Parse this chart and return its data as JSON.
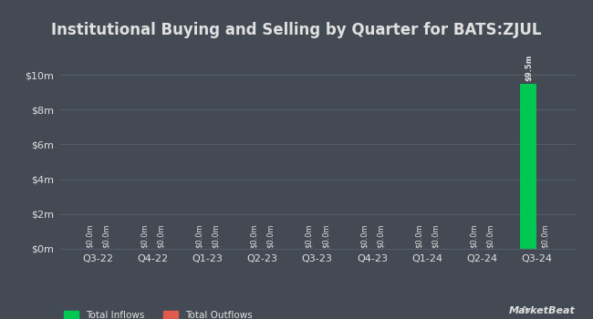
{
  "title": "Institutional Buying and Selling by Quarter for BATS:ZJUL",
  "quarters": [
    "Q3-22",
    "Q4-22",
    "Q1-23",
    "Q2-23",
    "Q3-23",
    "Q4-23",
    "Q1-24",
    "Q2-24",
    "Q3-24"
  ],
  "inflows": [
    0.0,
    0.0,
    0.0,
    0.0,
    0.0,
    0.0,
    0.0,
    0.0,
    9500000
  ],
  "outflows": [
    0.0,
    0.0,
    0.0,
    0.0,
    0.0,
    0.0,
    0.0,
    0.0,
    0.0
  ],
  "inflow_color": "#00c853",
  "outflow_color": "#e05a4e",
  "background_color": "#434a54",
  "plot_bg_color": "#434a54",
  "grid_color": "#545c67",
  "text_color": "#e0e0e0",
  "title_fontsize": 12,
  "tick_fontsize": 8,
  "bar_label_fontsize": 6,
  "ylim": [
    0,
    11000000
  ],
  "yticks": [
    0,
    2000000,
    4000000,
    6000000,
    8000000,
    10000000
  ],
  "ytick_labels": [
    "$0m",
    "$2m",
    "$4m",
    "$6m",
    "$8m",
    "$10m"
  ],
  "legend_inflow": "Total Inflows",
  "legend_outflow": "Total Outflows",
  "bar_width": 0.3,
  "marketbeat_text": "MarketBeat"
}
